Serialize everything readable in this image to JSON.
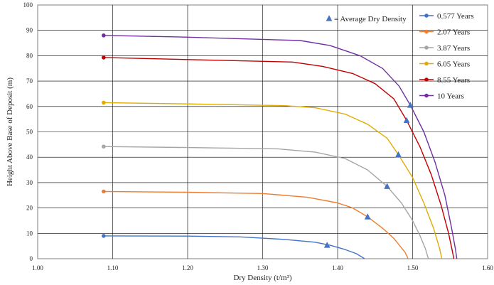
{
  "chart_data": {
    "type": "line",
    "xlabel": "Dry Density (t/m³)",
    "ylabel": "Height Above Base of Deposit (m)",
    "xlim": [
      1.0,
      1.6
    ],
    "ylim": [
      0,
      100
    ],
    "x_ticks": [
      "1.00",
      "1.10",
      "1.20",
      "1.30",
      "1.40",
      "1.50",
      "1.60"
    ],
    "y_ticks": [
      "0",
      "10",
      "20",
      "30",
      "40",
      "50",
      "60",
      "70",
      "80",
      "90",
      "100"
    ],
    "grid": true,
    "legend_position": "right",
    "average_marker": {
      "label": "= Average Dry Density",
      "color": "#4472c4",
      "points": [
        {
          "x": 1.386,
          "y": 5.3
        },
        {
          "x": 1.44,
          "y": 16.5
        },
        {
          "x": 1.466,
          "y": 28.5
        },
        {
          "x": 1.481,
          "y": 41.0
        },
        {
          "x": 1.492,
          "y": 54.5
        },
        {
          "x": 1.497,
          "y": 60.5
        }
      ]
    },
    "series": [
      {
        "name": "0.577 Years",
        "color": "#4472c4",
        "points": [
          [
            1.088,
            9.0
          ],
          [
            1.2,
            8.9
          ],
          [
            1.27,
            8.6
          ],
          [
            1.33,
            7.6
          ],
          [
            1.37,
            6.5
          ],
          [
            1.39,
            5.3
          ],
          [
            1.41,
            3.6
          ],
          [
            1.425,
            2.0
          ],
          [
            1.436,
            0.0
          ]
        ]
      },
      {
        "name": "2.07 Years",
        "color": "#ed7d31",
        "points": [
          [
            1.088,
            26.5
          ],
          [
            1.2,
            26.2
          ],
          [
            1.3,
            25.7
          ],
          [
            1.36,
            24.2
          ],
          [
            1.4,
            22.0
          ],
          [
            1.42,
            20.0
          ],
          [
            1.44,
            16.5
          ],
          [
            1.46,
            12.0
          ],
          [
            1.475,
            8.0
          ],
          [
            1.49,
            2.5
          ],
          [
            1.494,
            0.0
          ]
        ]
      },
      {
        "name": "3.87 Years",
        "color": "#a5a5a5",
        "points": [
          [
            1.088,
            44.2
          ],
          [
            1.2,
            43.8
          ],
          [
            1.32,
            43.3
          ],
          [
            1.37,
            42.0
          ],
          [
            1.41,
            39.5
          ],
          [
            1.44,
            35.0
          ],
          [
            1.466,
            28.5
          ],
          [
            1.485,
            22.0
          ],
          [
            1.5,
            15.0
          ],
          [
            1.51,
            9.0
          ],
          [
            1.517,
            4.0
          ],
          [
            1.521,
            0.0
          ]
        ]
      },
      {
        "name": "6.05 Years",
        "color": "#e0ac00",
        "points": [
          [
            1.088,
            61.5
          ],
          [
            1.2,
            61.0
          ],
          [
            1.33,
            60.3
          ],
          [
            1.37,
            59.5
          ],
          [
            1.41,
            57.0
          ],
          [
            1.44,
            53.0
          ],
          [
            1.466,
            47.5
          ],
          [
            1.481,
            41.0
          ],
          [
            1.5,
            32.0
          ],
          [
            1.515,
            22.0
          ],
          [
            1.528,
            12.0
          ],
          [
            1.536,
            4.0
          ],
          [
            1.539,
            0.0
          ]
        ]
      },
      {
        "name": "8.55 Years",
        "color": "#c00000",
        "points": [
          [
            1.088,
            79.3
          ],
          [
            1.2,
            78.5
          ],
          [
            1.34,
            77.5
          ],
          [
            1.38,
            75.8
          ],
          [
            1.42,
            73.0
          ],
          [
            1.45,
            69.0
          ],
          [
            1.475,
            63.0
          ],
          [
            1.492,
            54.5
          ],
          [
            1.51,
            44.0
          ],
          [
            1.525,
            33.0
          ],
          [
            1.538,
            21.0
          ],
          [
            1.548,
            10.0
          ],
          [
            1.553,
            3.0
          ],
          [
            1.555,
            0.0
          ]
        ]
      },
      {
        "name": "10 Years",
        "color": "#7030a0",
        "points": [
          [
            1.088,
            88.0
          ],
          [
            1.2,
            87.3
          ],
          [
            1.35,
            86.0
          ],
          [
            1.39,
            84.0
          ],
          [
            1.43,
            80.0
          ],
          [
            1.46,
            75.0
          ],
          [
            1.482,
            68.0
          ],
          [
            1.497,
            60.5
          ],
          [
            1.515,
            50.0
          ],
          [
            1.53,
            38.0
          ],
          [
            1.543,
            25.0
          ],
          [
            1.552,
            12.0
          ],
          [
            1.557,
            4.0
          ],
          [
            1.559,
            0.0
          ]
        ]
      }
    ]
  }
}
